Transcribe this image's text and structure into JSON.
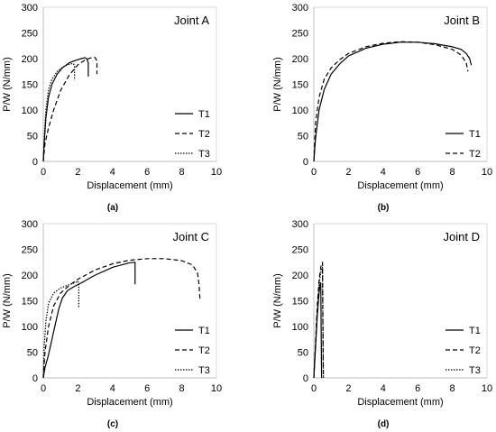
{
  "chart_data": [
    {
      "type": "line",
      "panel_label": "(a)",
      "annotation": "Joint A",
      "xlabel": "Displacement (mm)",
      "ylabel": "P/W (N/mm)",
      "xlim": [
        0,
        10
      ],
      "ylim": [
        0,
        300
      ],
      "xticks": [
        0,
        2,
        4,
        6,
        8,
        10
      ],
      "yticks": [
        0,
        50,
        100,
        150,
        200,
        250,
        300
      ],
      "grid": false,
      "legend_position": "bottom-right",
      "series": [
        {
          "name": "T1",
          "style": "solid",
          "x": [
            0,
            0.05,
            0.15,
            0.3,
            0.5,
            0.8,
            1.1,
            1.5,
            1.9,
            2.2,
            2.4,
            2.5,
            2.55,
            2.6,
            2.6
          ],
          "y": [
            0,
            35,
            85,
            125,
            150,
            170,
            182,
            192,
            197,
            200,
            202,
            200,
            196,
            192,
            165
          ]
        },
        {
          "name": "T2",
          "style": "dashed",
          "x": [
            0,
            0.1,
            0.3,
            0.6,
            1.0,
            1.5,
            2.0,
            2.4,
            2.7,
            2.9,
            3.0,
            3.1,
            3.1
          ],
          "y": [
            0,
            35,
            65,
            100,
            138,
            168,
            188,
            197,
            201,
            203,
            202,
            195,
            170
          ]
        },
        {
          "name": "T3",
          "style": "dotted",
          "x": [
            0,
            0.05,
            0.15,
            0.3,
            0.5,
            0.8,
            1.1,
            1.4,
            1.6,
            1.75,
            1.8,
            1.8
          ],
          "y": [
            0,
            45,
            100,
            140,
            160,
            175,
            183,
            188,
            190,
            190,
            185,
            158
          ]
        }
      ]
    },
    {
      "type": "line",
      "panel_label": "(b)",
      "annotation": "Joint B",
      "xlabel": "Displacement (mm)",
      "ylabel": "P/W (N/mm)",
      "xlim": [
        0,
        10
      ],
      "ylim": [
        0,
        300
      ],
      "xticks": [
        0,
        2,
        4,
        6,
        8,
        10
      ],
      "yticks": [
        0,
        50,
        100,
        150,
        200,
        250,
        300
      ],
      "grid": false,
      "legend_position": "bottom-right",
      "series": [
        {
          "name": "T1",
          "style": "solid",
          "x": [
            0,
            0.1,
            0.3,
            0.6,
            1.0,
            1.5,
            2.0,
            3.0,
            4.0,
            5.0,
            6.0,
            7.0,
            8.0,
            8.5,
            8.8,
            9.0,
            9.1
          ],
          "y": [
            0,
            45,
            100,
            140,
            170,
            190,
            205,
            220,
            228,
            232,
            232,
            229,
            223,
            218,
            210,
            200,
            187
          ]
        },
        {
          "name": "T2",
          "style": "dashed",
          "x": [
            0,
            0.1,
            0.3,
            0.6,
            1.0,
            1.5,
            2.0,
            3.0,
            4.0,
            5.0,
            6.0,
            7.0,
            8.0,
            8.5,
            8.8,
            8.9
          ],
          "y": [
            0,
            75,
            125,
            160,
            182,
            198,
            210,
            223,
            230,
            233,
            232,
            227,
            218,
            207,
            192,
            175
          ]
        }
      ]
    },
    {
      "type": "line",
      "panel_label": "(c)",
      "annotation": "Joint C",
      "xlabel": "Displacement (mm)",
      "ylabel": "P/W (N/mm)",
      "xlim": [
        0,
        10
      ],
      "ylim": [
        0,
        300
      ],
      "xticks": [
        0,
        2,
        4,
        6,
        8,
        10
      ],
      "yticks": [
        0,
        50,
        100,
        150,
        200,
        250,
        300
      ],
      "grid": false,
      "legend_position": "bottom-right",
      "series": [
        {
          "name": "T1",
          "style": "solid",
          "x": [
            0,
            0.1,
            0.3,
            0.5,
            0.7,
            0.9,
            1.1,
            1.4,
            1.8,
            2.2,
            3.0,
            4.0,
            5.0,
            5.3,
            5.3
          ],
          "y": [
            0,
            20,
            45,
            75,
            105,
            135,
            155,
            170,
            178,
            185,
            200,
            215,
            224,
            225,
            182
          ]
        },
        {
          "name": "T2",
          "style": "dashed",
          "x": [
            0,
            0.1,
            0.3,
            0.6,
            1.0,
            1.5,
            2.0,
            3.0,
            4.0,
            5.0,
            6.0,
            7.0,
            8.0,
            8.6,
            8.9,
            9.0,
            9.05
          ],
          "y": [
            0,
            50,
            100,
            140,
            165,
            180,
            192,
            210,
            222,
            229,
            232,
            232,
            228,
            220,
            205,
            180,
            150
          ]
        },
        {
          "name": "T3",
          "style": "dotted",
          "x": [
            0,
            0.05,
            0.15,
            0.3,
            0.6,
            1.0,
            1.4,
            1.8,
            2.0,
            2.05,
            2.05
          ],
          "y": [
            0,
            60,
            110,
            145,
            165,
            175,
            180,
            185,
            188,
            180,
            135
          ]
        }
      ]
    },
    {
      "type": "line",
      "panel_label": "(d)",
      "annotation": "Joint D",
      "xlabel": "Displacement (mm)",
      "ylabel": "P/W (N/mm)",
      "xlim": [
        0,
        10
      ],
      "ylim": [
        0,
        300
      ],
      "xticks": [
        0,
        2,
        4,
        6,
        8,
        10
      ],
      "yticks": [
        0,
        50,
        100,
        150,
        200,
        250,
        300
      ],
      "grid": false,
      "legend_position": "bottom-right",
      "series": [
        {
          "name": "T1",
          "style": "solid",
          "x": [
            0,
            0.1,
            0.2,
            0.3,
            0.35,
            0.4,
            0.42,
            0.45
          ],
          "y": [
            0,
            60,
            120,
            165,
            180,
            185,
            100,
            0
          ]
        },
        {
          "name": "T2",
          "style": "dashed",
          "x": [
            0,
            0.1,
            0.2,
            0.3,
            0.4,
            0.45,
            0.5,
            0.52,
            0.55
          ],
          "y": [
            0,
            70,
            140,
            190,
            215,
            222,
            225,
            120,
            0
          ]
        },
        {
          "name": "T3",
          "style": "dotted",
          "x": [
            0,
            0.1,
            0.2,
            0.3,
            0.4,
            0.45,
            0.5,
            0.52,
            0.55
          ],
          "y": [
            0,
            65,
            130,
            180,
            205,
            212,
            215,
            110,
            0
          ]
        }
      ]
    }
  ]
}
